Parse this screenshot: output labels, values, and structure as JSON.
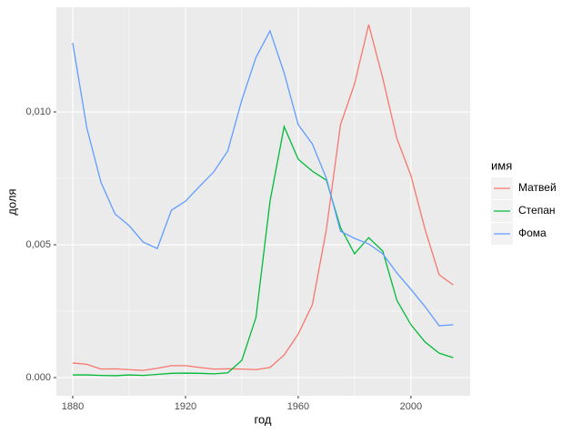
{
  "chart_data": {
    "type": "line",
    "x_label": "год",
    "y_label": "доля",
    "legend_title": "имя",
    "x": [
      1880,
      1885,
      1890,
      1895,
      1900,
      1905,
      1910,
      1915,
      1920,
      1925,
      1930,
      1935,
      1940,
      1945,
      1950,
      1955,
      1960,
      1965,
      1970,
      1975,
      1980,
      1985,
      1990,
      1995,
      2000,
      2005,
      2010,
      2015
    ],
    "series": [
      {
        "name": "Матвей",
        "color": "#F8766D",
        "values": [
          0.00055,
          0.0005,
          0.00032,
          0.00033,
          0.0003,
          0.00027,
          0.00035,
          0.00045,
          0.00045,
          0.00038,
          0.00032,
          0.00033,
          0.00032,
          0.0003,
          0.00038,
          0.00085,
          0.00164,
          0.00274,
          0.00558,
          0.00952,
          0.01106,
          0.01329,
          0.01127,
          0.009,
          0.0076,
          0.00558,
          0.00387,
          0.00349
        ]
      },
      {
        "name": "Степан",
        "color": "#00BA38",
        "values": [
          0.0001,
          0.0001,
          8e-05,
          7e-05,
          0.0001,
          8e-05,
          0.00012,
          0.00016,
          0.00017,
          0.00016,
          0.00014,
          0.00018,
          0.00065,
          0.00226,
          0.00664,
          0.00945,
          0.00822,
          0.00777,
          0.00743,
          0.00565,
          0.00466,
          0.00527,
          0.00476,
          0.00291,
          0.00199,
          0.00134,
          0.00092,
          0.00075
        ]
      },
      {
        "name": "Фома",
        "color": "#619CFF",
        "values": [
          0.0126,
          0.0094,
          0.00736,
          0.00616,
          0.00572,
          0.0051,
          0.00486,
          0.0063,
          0.00664,
          0.0072,
          0.00774,
          0.00853,
          0.01045,
          0.01205,
          0.01305,
          0.01147,
          0.00952,
          0.0088,
          0.0075,
          0.00551,
          0.00524,
          0.00503,
          0.00466,
          0.00394,
          0.00332,
          0.00267,
          0.00195,
          0.00199
        ]
      }
    ],
    "xlim": [
      1874.2,
      2021
    ],
    "xticks": [
      1880,
      1920,
      1960,
      2000
    ],
    "ylim": [
      -0.000685,
      0.01394
    ],
    "yticks": [
      {
        "value": 0,
        "label": "0.000"
      },
      {
        "value": 0.005,
        "label": "0,005"
      },
      {
        "value": 0.01,
        "label": "0,010"
      }
    ],
    "grid": true,
    "legend": "right"
  }
}
